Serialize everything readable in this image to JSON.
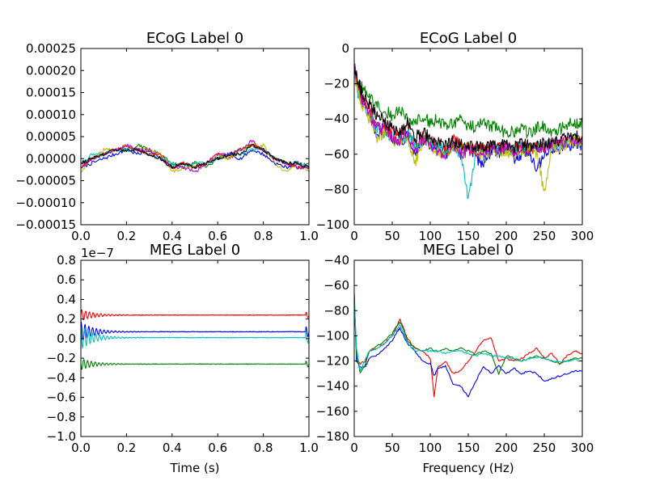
{
  "chart_data": [
    {
      "type": "line",
      "title": "ECoG Label 0",
      "xlabel": "",
      "ylabel": "",
      "xlim": [
        0.0,
        1.0
      ],
      "ylim": [
        -0.00015,
        0.00025
      ],
      "xticks": [
        "0.0",
        "0.2",
        "0.4",
        "0.6",
        "0.8",
        "1.0"
      ],
      "yticks": [
        "−0.00015",
        "−0.00010",
        "−0.00005",
        "0.00000",
        "0.00005",
        "0.00010",
        "0.00015",
        "0.00020",
        "0.00025"
      ],
      "x": [
        0.0,
        0.05,
        0.1,
        0.15,
        0.2,
        0.25,
        0.3,
        0.35,
        0.4,
        0.45,
        0.5,
        0.55,
        0.6,
        0.65,
        0.7,
        0.75,
        0.8,
        0.85,
        0.9,
        0.95,
        1.0
      ],
      "series": [
        {
          "color": "#0000ff",
          "values": [
            -2e-05,
            -1e-05,
            0.0,
            1e-05,
            2e-05,
            1e-05,
            2e-05,
            0.0,
            -2e-05,
            -1e-05,
            -2e-05,
            -1e-05,
            0.0,
            1e-05,
            0.0,
            2e-05,
            1e-05,
            -1e-05,
            -2e-05,
            -1e-05,
            -2e-05
          ]
        },
        {
          "color": "#008000",
          "values": [
            -1e-05,
            0.0,
            1e-05,
            2e-05,
            2e-05,
            3e-05,
            2e-05,
            1e-05,
            -1e-05,
            -2e-05,
            -1e-05,
            -2e-05,
            0.0,
            1e-05,
            2e-05,
            3e-05,
            2e-05,
            0.0,
            -1e-05,
            -2e-05,
            -1e-05
          ]
        },
        {
          "color": "#ff0000",
          "values": [
            -2e-05,
            0.0,
            1e-05,
            2e-05,
            3e-05,
            2e-05,
            1e-05,
            1e-05,
            -2e-05,
            -1e-05,
            -2e-05,
            -1e-05,
            1e-05,
            0.0,
            2e-05,
            3e-05,
            2e-05,
            0.0,
            -1e-05,
            -2e-05,
            -2e-05
          ]
        },
        {
          "color": "#00bfbf",
          "values": [
            -1e-05,
            1e-05,
            1e-05,
            2e-05,
            2e-05,
            2e-05,
            1e-05,
            0.0,
            -1e-05,
            -2e-05,
            -1e-05,
            -1e-05,
            0.0,
            1e-05,
            1e-05,
            2e-05,
            2e-05,
            0.0,
            -1e-05,
            -1e-05,
            -2e-05
          ]
        },
        {
          "color": "#bfbf00",
          "values": [
            -3e-05,
            0.0,
            2e-05,
            2e-05,
            3e-05,
            2e-05,
            2e-05,
            1e-05,
            -3e-05,
            -2e-05,
            -2e-05,
            -1e-05,
            1e-05,
            0.0,
            2e-05,
            3e-05,
            3e-05,
            -1e-05,
            -3e-05,
            -1e-05,
            -3e-05
          ]
        },
        {
          "color": "#bf00bf",
          "values": [
            -2e-05,
            0.0,
            1e-05,
            2e-05,
            3e-05,
            2e-05,
            2e-05,
            0.0,
            -2e-05,
            -2e-05,
            -3e-05,
            -1e-05,
            1e-05,
            1e-05,
            2e-05,
            4e-05,
            2e-05,
            0.0,
            -1e-05,
            -2e-05,
            -2e-05
          ]
        },
        {
          "color": "#000000",
          "values": [
            -1e-05,
            0.0,
            1e-05,
            2e-05,
            2e-05,
            2e-05,
            1e-05,
            0.0,
            -2e-05,
            -1e-05,
            -2e-05,
            -1e-05,
            0.0,
            1e-05,
            1e-05,
            3e-05,
            2e-05,
            0.0,
            -1e-05,
            -1e-05,
            -2e-05
          ]
        }
      ]
    },
    {
      "type": "line",
      "title": "ECoG Label 0",
      "xlabel": "",
      "ylabel": "",
      "xlim": [
        0,
        300
      ],
      "ylim": [
        -100,
        0
      ],
      "xticks": [
        "0",
        "50",
        "100",
        "150",
        "200",
        "250",
        "300"
      ],
      "yticks": [
        "−100",
        "−80",
        "−60",
        "−40",
        "−20",
        "0"
      ],
      "x": [
        0,
        5,
        10,
        20,
        30,
        40,
        50,
        60,
        70,
        80,
        90,
        100,
        110,
        120,
        130,
        140,
        150,
        160,
        170,
        180,
        190,
        200,
        210,
        220,
        230,
        240,
        250,
        260,
        270,
        280,
        290,
        300
      ],
      "series": [
        {
          "color": "#0000ff",
          "values": [
            -10,
            -22,
            -30,
            -40,
            -48,
            -45,
            -50,
            -55,
            -48,
            -60,
            -52,
            -55,
            -58,
            -62,
            -55,
            -60,
            -55,
            -62,
            -65,
            -58,
            -60,
            -55,
            -62,
            -60,
            -58,
            -68,
            -60,
            -56,
            -58,
            -55,
            -54,
            -55
          ]
        },
        {
          "color": "#008000",
          "values": [
            -8,
            -20,
            -22,
            -28,
            -32,
            -35,
            -38,
            -35,
            -40,
            -42,
            -38,
            -42,
            -40,
            -45,
            -42,
            -40,
            -44,
            -45,
            -42,
            -44,
            -46,
            -48,
            -47,
            -46,
            -48,
            -45,
            -44,
            -47,
            -46,
            -43,
            -42,
            -42
          ]
        },
        {
          "color": "#ff0000",
          "values": [
            -12,
            -22,
            -28,
            -35,
            -42,
            -45,
            -48,
            -50,
            -46,
            -55,
            -50,
            -52,
            -55,
            -56,
            -52,
            -55,
            -57,
            -56,
            -58,
            -56,
            -56,
            -56,
            -57,
            -55,
            -57,
            -56,
            -56,
            -54,
            -54,
            -53,
            -52,
            -52
          ]
        },
        {
          "color": "#00bfbf",
          "values": [
            -14,
            -25,
            -30,
            -38,
            -45,
            -48,
            -50,
            -52,
            -48,
            -56,
            -52,
            -54,
            -56,
            -58,
            -55,
            -60,
            -86,
            -58,
            -60,
            -56,
            -58,
            -57,
            -58,
            -56,
            -58,
            -56,
            -55,
            -54,
            -55,
            -54,
            -53,
            -53
          ]
        },
        {
          "color": "#bfbf00",
          "values": [
            -12,
            -24,
            -32,
            -40,
            -50,
            -48,
            -52,
            -54,
            -50,
            -65,
            -52,
            -55,
            -58,
            -60,
            -55,
            -58,
            -56,
            -60,
            -62,
            -57,
            -60,
            -58,
            -60,
            -58,
            -58,
            -59,
            -82,
            -56,
            -56,
            -54,
            -53,
            -53
          ]
        },
        {
          "color": "#bf00bf",
          "values": [
            -10,
            -20,
            -28,
            -38,
            -45,
            -46,
            -50,
            -52,
            -48,
            -58,
            -52,
            -55,
            -58,
            -60,
            -56,
            -60,
            -58,
            -58,
            -60,
            -57,
            -58,
            -56,
            -58,
            -56,
            -57,
            -57,
            -56,
            -54,
            -55,
            -53,
            -52,
            -52
          ]
        },
        {
          "color": "#000000",
          "values": [
            -10,
            -18,
            -25,
            -32,
            -38,
            -42,
            -45,
            -48,
            -42,
            -50,
            -48,
            -50,
            -52,
            -55,
            -52,
            -55,
            -54,
            -56,
            -56,
            -55,
            -56,
            -54,
            -56,
            -54,
            -55,
            -55,
            -54,
            -53,
            -52,
            -51,
            -50,
            -50
          ]
        }
      ]
    },
    {
      "type": "line",
      "title": "MEG Label 0",
      "xlabel": "Time (s)",
      "ylabel": "",
      "offset_text": "1e−7",
      "xlim": [
        0.0,
        1.0
      ],
      "ylim": [
        -1.0,
        0.8
      ],
      "xticks": [
        "0.0",
        "0.2",
        "0.4",
        "0.6",
        "0.8",
        "1.0"
      ],
      "yticks": [
        "−1.0",
        "−0.8",
        "−0.6",
        "−0.4",
        "−0.2",
        "0.0",
        "0.2",
        "0.4",
        "0.6",
        "0.8"
      ],
      "series": [
        {
          "color": "#ff0000",
          "level": 0.24,
          "ring": 0.06
        },
        {
          "color": "#0000ff",
          "level": 0.07,
          "ring": 0.1
        },
        {
          "color": "#00bfbf",
          "level": 0.01,
          "ring": 0.12
        },
        {
          "color": "#008000",
          "level": -0.26,
          "ring": 0.06
        }
      ]
    },
    {
      "type": "line",
      "title": "MEG Label 0",
      "xlabel": "Frequency (Hz)",
      "ylabel": "",
      "xlim": [
        0,
        300
      ],
      "ylim": [
        -180,
        -40
      ],
      "xticks": [
        "0",
        "50",
        "100",
        "150",
        "200",
        "250",
        "300"
      ],
      "yticks": [
        "−180",
        "−160",
        "−140",
        "−120",
        "−100",
        "−80",
        "−60",
        "−40"
      ],
      "x": [
        0,
        3,
        8,
        15,
        20,
        30,
        40,
        50,
        55,
        60,
        65,
        70,
        80,
        90,
        100,
        105,
        110,
        120,
        130,
        140,
        150,
        160,
        170,
        180,
        190,
        200,
        210,
        220,
        230,
        240,
        250,
        260,
        270,
        280,
        290,
        300
      ],
      "series": [
        {
          "color": "#ff0000",
          "values": [
            -65,
            -118,
            -122,
            -120,
            -112,
            -110,
            -106,
            -100,
            -94,
            -87,
            -94,
            -102,
            -110,
            -112,
            -118,
            -148,
            -125,
            -120,
            -130,
            -128,
            -120,
            -112,
            -103,
            -102,
            -120,
            -118,
            -120,
            -118,
            -114,
            -110,
            -118,
            -114,
            -122,
            -116,
            -112,
            -114
          ]
        },
        {
          "color": "#0000ff",
          "values": [
            -70,
            -120,
            -125,
            -124,
            -118,
            -115,
            -110,
            -104,
            -98,
            -94,
            -100,
            -106,
            -112,
            -120,
            -122,
            -132,
            -126,
            -124,
            -138,
            -140,
            -148,
            -136,
            -124,
            -130,
            -124,
            -130,
            -126,
            -130,
            -128,
            -130,
            -136,
            -134,
            -132,
            -130,
            -128,
            -128
          ]
        },
        {
          "color": "#008000",
          "values": [
            -68,
            -115,
            -130,
            -122,
            -112,
            -108,
            -104,
            -98,
            -93,
            -89,
            -95,
            -104,
            -110,
            -112,
            -110,
            -112,
            -112,
            -110,
            -112,
            -110,
            -112,
            -115,
            -112,
            -114,
            -130,
            -116,
            -118,
            -120,
            -118,
            -116,
            -118,
            -120,
            -122,
            -120,
            -118,
            -118
          ]
        },
        {
          "color": "#00bfbf",
          "values": [
            -72,
            -110,
            -128,
            -118,
            -112,
            -110,
            -106,
            -100,
            -96,
            -91,
            -98,
            -106,
            -112,
            -112,
            -112,
            -112,
            -112,
            -114,
            -112,
            -112,
            -114,
            -116,
            -114,
            -116,
            -116,
            -118,
            -118,
            -120,
            -118,
            -117,
            -118,
            -120,
            -121,
            -120,
            -119,
            -120
          ]
        }
      ]
    }
  ]
}
